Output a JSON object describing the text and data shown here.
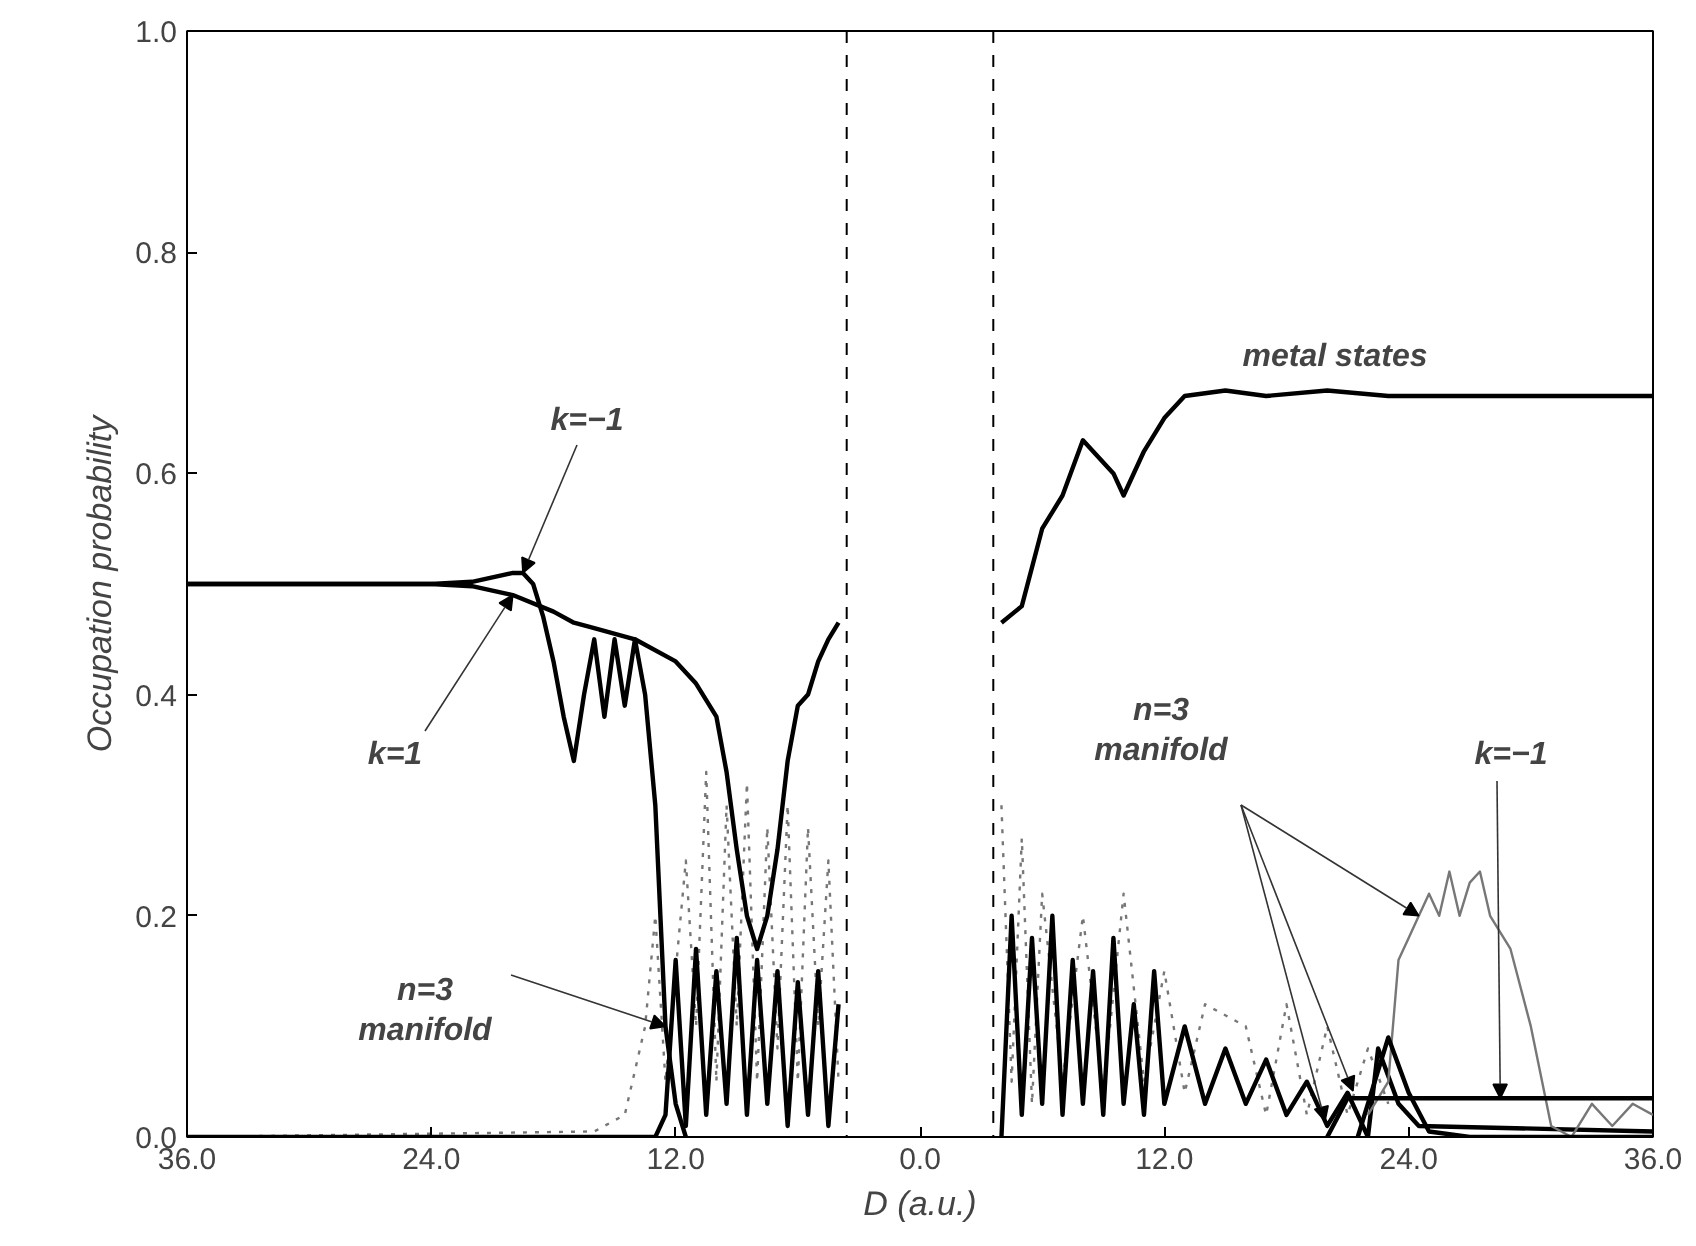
{
  "chart_data": {
    "type": "line",
    "xlabel": "D (a.u.)",
    "ylabel": "Occupation probability",
    "xlim": [
      -36,
      36
    ],
    "ylim": [
      0,
      1
    ],
    "xticks": [
      {
        "value": -36,
        "label": "36.0"
      },
      {
        "value": -24,
        "label": "24.0"
      },
      {
        "value": -12,
        "label": "12.0"
      },
      {
        "value": 0,
        "label": "0.0"
      },
      {
        "value": 12,
        "label": "12.0"
      },
      {
        "value": 24,
        "label": "24.0"
      },
      {
        "value": 36,
        "label": "36.0"
      }
    ],
    "yticks": [
      {
        "value": 0,
        "label": "0.0"
      },
      {
        "value": 0.2,
        "label": "0.2"
      },
      {
        "value": 0.4,
        "label": "0.4"
      },
      {
        "value": 0.6,
        "label": "0.6"
      },
      {
        "value": 0.8,
        "label": "0.8"
      },
      {
        "value": 1,
        "label": "1.0"
      }
    ],
    "grid": false,
    "marker": "none",
    "series": [
      {
        "color": "#777777",
        "line_style": "dotted",
        "x": [
          -36,
          -16,
          -14.5,
          -13.5,
          -13,
          -12.5,
          -11.5,
          -11,
          -10.5,
          -10,
          -9.5,
          -9,
          -8.5,
          -8,
          -7.5,
          -7,
          -6.5,
          -6,
          -5.5,
          -5,
          -4.5,
          -4
        ],
        "values": [
          0,
          0.005,
          0.02,
          0.1,
          0.2,
          0.05,
          0.25,
          0.1,
          0.33,
          0.05,
          0.3,
          0.1,
          0.32,
          0.05,
          0.28,
          0.08,
          0.3,
          0.05,
          0.28,
          0.1,
          0.25,
          0.05
        ]
      },
      {
        "color": "#000000",
        "x": [
          -36,
          -14,
          -13,
          -12.5,
          -12,
          -11.5,
          -11,
          -10.5,
          -10,
          -9.5,
          -9,
          -8.5,
          -8,
          -7.5,
          -7,
          -6.5,
          -6,
          -5.5,
          -5,
          -4.5,
          -4
        ],
        "values": [
          0,
          0,
          0,
          0.02,
          0.16,
          0.01,
          0.17,
          0.02,
          0.15,
          0.03,
          0.18,
          0.02,
          0.16,
          0.03,
          0.15,
          0.01,
          0.14,
          0.02,
          0.15,
          0.01,
          0.12
        ]
      },
      {
        "color": "#000000",
        "x": [
          -36,
          -24,
          -22,
          -20,
          -19.5,
          -19,
          -18.5,
          -18,
          -17.5,
          -17,
          -16.5,
          -16,
          -15.5,
          -15,
          -14.5,
          -14,
          -13.5,
          -13,
          -12.5,
          -12,
          -11.5
        ],
        "values": [
          0.5,
          0.5,
          0.502,
          0.51,
          0.51,
          0.5,
          0.47,
          0.43,
          0.38,
          0.34,
          0.4,
          0.45,
          0.38,
          0.45,
          0.39,
          0.45,
          0.4,
          0.3,
          0.1,
          0.03,
          0.0
        ]
      },
      {
        "color": "#000000",
        "x": [
          -36,
          -24,
          -22,
          -20,
          -18,
          -17,
          -16,
          -14,
          -12,
          -11,
          -10,
          -9.5,
          -9,
          -8.5,
          -8,
          -7.5,
          -7,
          -6.5,
          -6,
          -5.5,
          -5,
          -4.5,
          -4
        ],
        "values": [
          0.5,
          0.5,
          0.498,
          0.49,
          0.475,
          0.465,
          0.46,
          0.45,
          0.43,
          0.41,
          0.38,
          0.33,
          0.26,
          0.2,
          0.17,
          0.2,
          0.26,
          0.34,
          0.39,
          0.4,
          0.43,
          0.45,
          0.465
        ]
      },
      {
        "color": "#777777",
        "line_style": "dotted",
        "x": [
          4,
          4.5,
          5,
          5.5,
          6,
          7,
          8,
          9,
          10,
          11,
          12,
          13,
          14,
          16,
          17,
          18,
          19,
          20,
          21,
          22,
          23
        ],
        "values": [
          0.3,
          0.05,
          0.27,
          0.03,
          0.22,
          0.05,
          0.2,
          0.04,
          0.22,
          0.05,
          0.15,
          0.04,
          0.12,
          0.1,
          0.02,
          0.12,
          0.02,
          0.1,
          0.02,
          0.08,
          0.03
        ]
      },
      {
        "color": "#000000",
        "x": [
          4,
          4.5,
          5,
          5.5,
          6,
          6.5,
          7,
          7.5,
          8,
          8.5,
          9,
          9.5,
          10,
          10.5,
          11,
          11.5,
          12,
          13,
          14,
          15,
          16,
          17,
          18,
          19,
          20,
          21,
          22,
          22.5,
          23.5,
          24.5,
          36
        ],
        "values": [
          0.0,
          0.2,
          0.02,
          0.18,
          0.03,
          0.2,
          0.02,
          0.16,
          0.03,
          0.15,
          0.02,
          0.18,
          0.03,
          0.12,
          0.02,
          0.15,
          0.03,
          0.1,
          0.03,
          0.08,
          0.03,
          0.07,
          0.02,
          0.05,
          0.01,
          0.04,
          0.0,
          0.08,
          0.03,
          0.01,
          0.005
        ]
      },
      {
        "color": "#777777",
        "x": [
          22,
          23,
          23.5,
          24,
          24.5,
          25,
          25.5,
          26,
          26.5,
          27,
          27.5,
          28,
          29,
          30,
          31,
          32,
          33,
          34,
          35,
          36
        ],
        "values": [
          0.02,
          0.05,
          0.16,
          0.18,
          0.2,
          0.22,
          0.2,
          0.24,
          0.2,
          0.23,
          0.24,
          0.2,
          0.17,
          0.1,
          0.01,
          0.0,
          0.03,
          0.01,
          0.03,
          0.02
        ]
      },
      {
        "color": "#000000",
        "x": [
          20,
          21,
          36
        ],
        "values": [
          0.0,
          0.035,
          0.035
        ]
      },
      {
        "color": "#000000",
        "x": [
          21.5,
          23,
          24,
          25,
          27,
          36
        ],
        "values": [
          0.0,
          0.09,
          0.04,
          0.005,
          0.0,
          0.0
        ]
      },
      {
        "color": "#000000",
        "x": [
          4,
          5,
          6,
          7,
          8,
          9.5,
          10,
          11,
          12,
          13,
          15,
          17,
          20,
          23,
          36
        ],
        "values": [
          0.465,
          0.48,
          0.55,
          0.58,
          0.63,
          0.6,
          0.58,
          0.62,
          0.65,
          0.67,
          0.675,
          0.67,
          0.675,
          0.67,
          0.67
        ]
      }
    ],
    "ref_lines": [
      {
        "axis": "x",
        "value": -3.6,
        "color": "#000000",
        "line_style": "dashed"
      },
      {
        "axis": "x",
        "value": 3.6,
        "color": "#000000",
        "line_style": "dashed"
      }
    ],
    "annotations": [
      {
        "text": "k=−1",
        "x": -19.5,
        "y": 0.51
      },
      {
        "text": "k=1",
        "x": -20,
        "y": 0.49
      },
      {
        "text": "n=3\nmanifold",
        "x": -12.5,
        "y": 0.1
      },
      "metal states",
      {
        "text": "n=3\nmanifold",
        "x": 24.5,
        "y": 0.2
      },
      {
        "text": "k=−1",
        "x": 28.5,
        "y": 0.035
      }
    ]
  }
}
